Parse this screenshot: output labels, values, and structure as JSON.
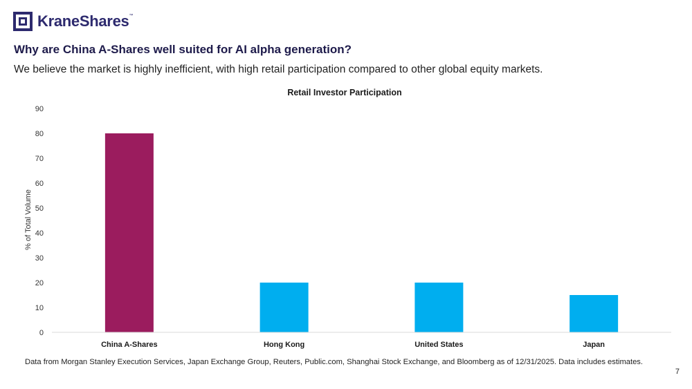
{
  "brand": {
    "name": "KraneShares",
    "trademark": "™"
  },
  "headline": "Why are China A-Shares well suited for AI alpha generation?",
  "subhead": "We believe the market is highly inefficient, with high retail participation compared to other global equity markets.",
  "footnote": "Data from Morgan Stanley Execution Services, Japan Exchange Group, Reuters, Public.com, Shanghai Stock Exchange, and Bloomberg as of 12/31/2025. Data includes estimates.",
  "page_number": "7",
  "colors": {
    "highlight": "#9b1c5e",
    "default": "#00aeef",
    "brand": "#2d2a6e"
  },
  "chart_data": {
    "type": "bar",
    "title": "Retail Investor Participation",
    "xlabel": "",
    "ylabel": "% of Total Volume",
    "categories": [
      "China A-Shares",
      "Hong Kong",
      "United States",
      "Japan"
    ],
    "values": [
      80,
      20,
      20,
      15
    ],
    "bar_colors": [
      "#9b1c5e",
      "#00aeef",
      "#00aeef",
      "#00aeef"
    ],
    "ylim": [
      0,
      90
    ],
    "yticks": [
      0,
      10,
      20,
      30,
      40,
      50,
      60,
      70,
      80,
      90
    ],
    "grid": false,
    "legend": "none"
  }
}
